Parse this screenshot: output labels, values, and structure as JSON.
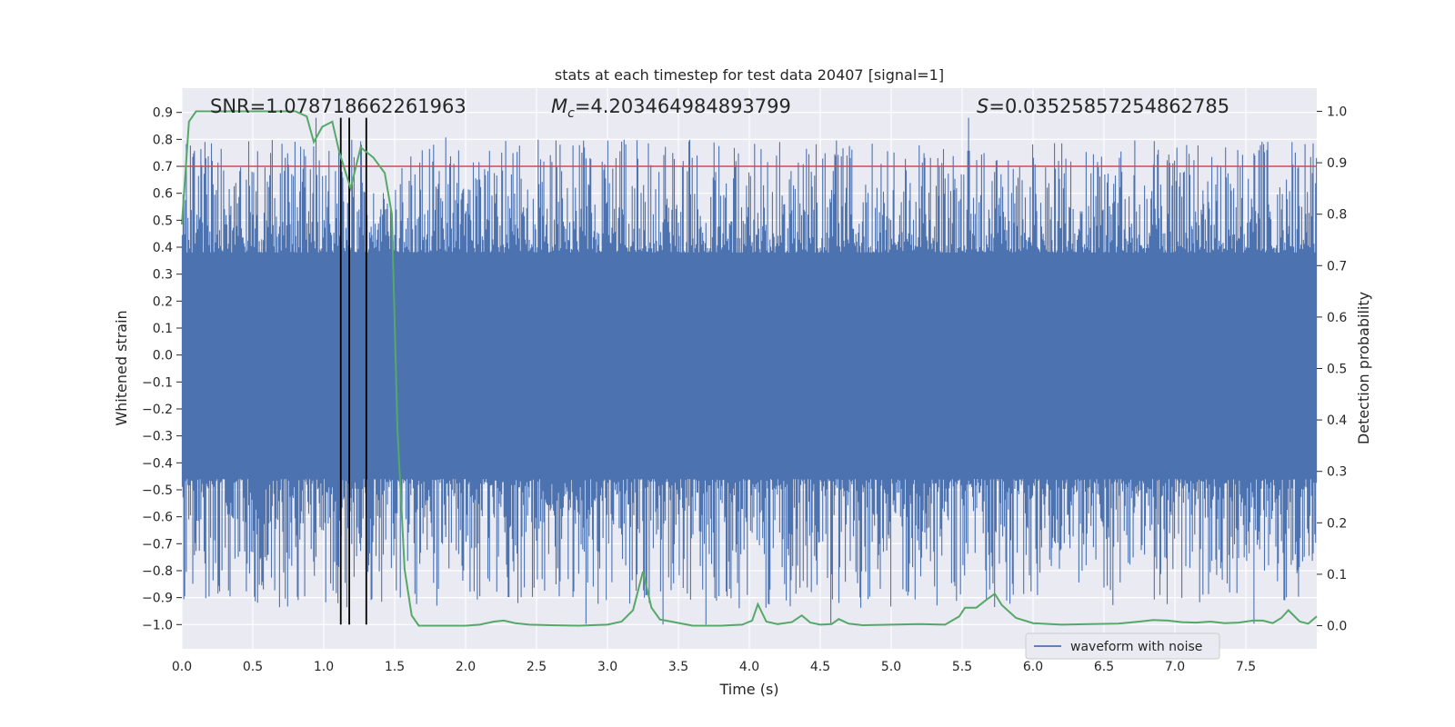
{
  "chart_data": {
    "type": "line",
    "title": "stats at each timestep for test data 20407 [signal=1]",
    "xlabel": "Time (s)",
    "ylabel_left": "Whitened strain",
    "ylabel_right": "Detection probability",
    "xlim": [
      0.0,
      8.0
    ],
    "ylim_left": [
      -1.09,
      0.99
    ],
    "ylim_right": [
      -0.045,
      1.045
    ],
    "x_ticks": [
      "0.0",
      "0.5",
      "1.0",
      "1.5",
      "2.0",
      "2.5",
      "3.0",
      "3.5",
      "4.0",
      "4.5",
      "5.0",
      "5.5",
      "6.0",
      "6.5",
      "7.0",
      "7.5"
    ],
    "x_tick_values": [
      0.0,
      0.5,
      1.0,
      1.5,
      2.0,
      2.5,
      3.0,
      3.5,
      4.0,
      4.5,
      5.0,
      5.5,
      6.0,
      6.5,
      7.0,
      7.5
    ],
    "y_left_ticks": [
      "0.9",
      "0.8",
      "0.7",
      "0.6",
      "0.5",
      "0.4",
      "0.3",
      "0.2",
      "0.1",
      "0.0",
      "−0.1",
      "−0.2",
      "−0.3",
      "−0.4",
      "−0.5",
      "−0.6",
      "−0.7",
      "−0.8",
      "−0.9",
      "−1.0"
    ],
    "y_left_tick_values": [
      0.9,
      0.8,
      0.7,
      0.6,
      0.5,
      0.4,
      0.3,
      0.2,
      0.1,
      0.0,
      -0.1,
      -0.2,
      -0.3,
      -0.4,
      -0.5,
      -0.6,
      -0.7,
      -0.8,
      -0.9,
      -1.0
    ],
    "y_right_ticks": [
      "1.0",
      "0.9",
      "0.8",
      "0.7",
      "0.6",
      "0.5",
      "0.4",
      "0.3",
      "0.2",
      "0.1",
      "0.0"
    ],
    "y_right_tick_values": [
      1.0,
      0.9,
      0.8,
      0.7,
      0.6,
      0.5,
      0.4,
      0.3,
      0.2,
      0.1,
      0.0
    ],
    "annotations": {
      "snr": "SNR=1.078718662261963",
      "mc_symbol": "M",
      "mc_sub": "c",
      "mc_value": "=4.203464984893799",
      "s_symbol": "S",
      "s_value": "=0.035258572548627​85"
    },
    "threshold": {
      "value": 0.7,
      "color": "#c44e52"
    },
    "vertical_markers": [
      1.12,
      1.18,
      1.3
    ],
    "waveform": {
      "name": "waveform with noise",
      "color": "#4c72b0",
      "core_upper": 0.3,
      "core_lower": -0.4,
      "max": 0.88,
      "min": -1.0
    },
    "detection_probability": {
      "color": "#55a868",
      "x": [
        0.0,
        0.05,
        0.1,
        0.2,
        0.3,
        0.4,
        0.5,
        0.6,
        0.7,
        0.8,
        0.88,
        0.93,
        0.99,
        1.06,
        1.11,
        1.19,
        1.26,
        1.35,
        1.43,
        1.48,
        1.52,
        1.57,
        1.62,
        1.67,
        1.73,
        1.8,
        1.9,
        2.0,
        2.1,
        2.2,
        2.27,
        2.35,
        2.45,
        2.6,
        2.8,
        3.0,
        3.1,
        3.18,
        3.25,
        3.31,
        3.37,
        3.45,
        3.6,
        3.8,
        3.95,
        4.02,
        4.06,
        4.12,
        4.2,
        4.3,
        4.37,
        4.43,
        4.5,
        4.58,
        4.63,
        4.7,
        4.8,
        5.0,
        5.2,
        5.38,
        5.48,
        5.52,
        5.6,
        5.67,
        5.73,
        5.78,
        5.88,
        6.0,
        6.2,
        6.4,
        6.6,
        6.75,
        6.85,
        6.95,
        7.05,
        7.15,
        7.25,
        7.35,
        7.45,
        7.55,
        7.62,
        7.69,
        7.75,
        7.8,
        7.88,
        7.94,
        8.0
      ],
      "y": [
        0.78,
        0.98,
        1.0,
        1.0,
        1.0,
        1.0,
        1.0,
        1.0,
        1.0,
        1.0,
        0.99,
        0.94,
        0.97,
        0.98,
        0.92,
        0.85,
        0.93,
        0.91,
        0.88,
        0.8,
        0.38,
        0.11,
        0.02,
        0.0,
        0.0,
        0.0,
        0.0,
        0.0,
        0.002,
        0.008,
        0.01,
        0.005,
        0.002,
        0.001,
        0.0,
        0.002,
        0.008,
        0.03,
        0.105,
        0.035,
        0.012,
        0.008,
        0.0,
        0.0,
        0.002,
        0.01,
        0.042,
        0.008,
        0.003,
        0.007,
        0.02,
        0.006,
        0.002,
        0.003,
        0.013,
        0.004,
        0.001,
        0.002,
        0.003,
        0.002,
        0.018,
        0.035,
        0.035,
        0.05,
        0.062,
        0.04,
        0.015,
        0.005,
        0.002,
        0.003,
        0.004,
        0.008,
        0.011,
        0.01,
        0.007,
        0.006,
        0.008,
        0.005,
        0.006,
        0.01,
        0.01,
        0.005,
        0.015,
        0.03,
        0.008,
        0.004,
        0.018
      ]
    },
    "legend": {
      "label": "waveform with noise",
      "position": "lower-right"
    },
    "grid": true
  }
}
